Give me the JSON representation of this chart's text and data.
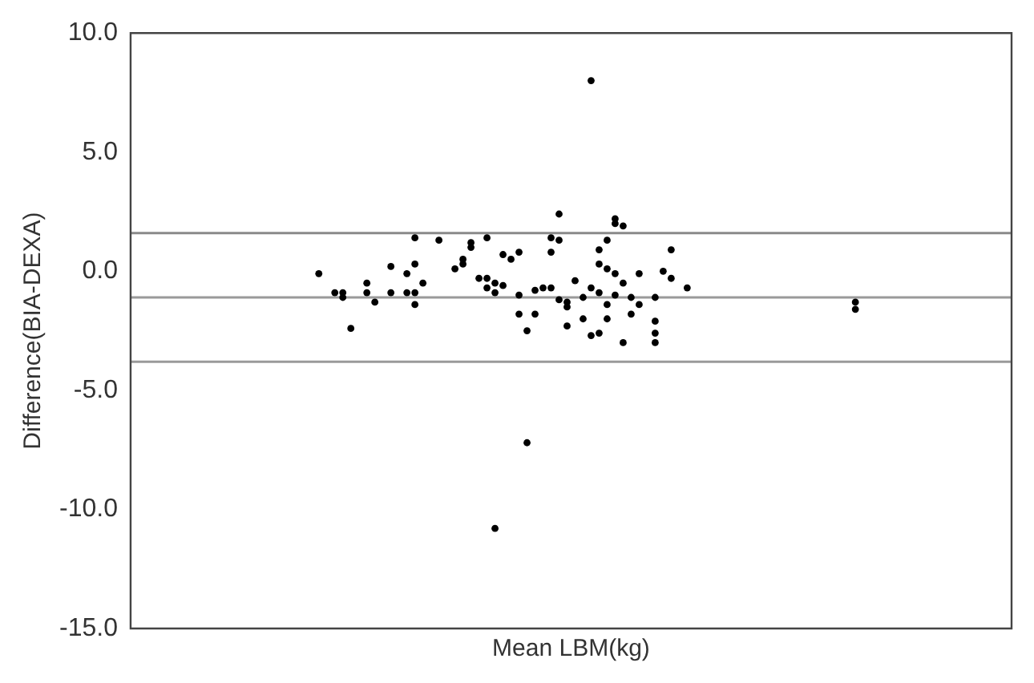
{
  "chart_data": {
    "type": "scatter",
    "xlabel": "Mean LBM(kg)",
    "ylabel": "Difference(BIA-DEXA)",
    "categories": [
      null,
      null,
      null,
      null,
      null,
      null,
      null,
      null,
      null,
      null,
      null,
      null,
      null,
      null,
      null,
      null,
      null,
      null,
      null,
      null,
      null,
      null,
      null,
      null,
      null,
      null,
      null,
      null,
      null,
      null,
      null,
      null,
      null,
      null,
      null,
      null,
      null,
      null,
      null,
      null,
      null,
      null,
      null,
      null,
      null,
      null,
      null,
      null,
      null,
      null,
      null,
      null,
      null,
      null,
      null,
      null,
      null,
      null,
      null,
      null,
      null,
      null,
      null,
      null,
      null,
      null,
      null,
      null,
      null,
      null,
      null,
      null,
      null,
      null,
      null,
      null,
      null,
      null,
      null,
      null,
      null,
      null,
      null,
      null,
      null,
      null,
      null,
      null,
      null,
      null,
      null,
      null,
      null,
      null,
      null,
      null,
      null,
      null,
      null,
      null,
      null,
      null,
      null,
      null,
      null,
      null,
      null,
      null,
      null,
      null
    ],
    "series": [
      {
        "color": "#000000",
        "values": [
          null,
          null,
          null,
          null,
          null,
          null,
          null,
          null,
          null,
          null,
          null,
          null,
          null,
          null,
          null,
          null,
          null,
          null,
          null,
          null,
          null,
          null,
          null,
          -0.1,
          null,
          -0.9,
          -0.9,
          -2.4,
          null,
          -0.5,
          -1.3,
          null,
          -0.9,
          null,
          -0.9,
          -0.9,
          -0.5,
          null,
          1.3,
          null,
          0.1,
          0.3,
          1.0,
          -0.3,
          -0.7,
          -0.5,
          -0.6,
          0.5,
          -1.8,
          -2.5,
          -1.8,
          -0.7,
          -0.7,
          1.3,
          -1.5,
          -0.4,
          -1.1,
          -0.7,
          0.9,
          0.1,
          -1.0,
          1.9,
          -1.1,
          -0.1,
          null,
          -2.1,
          0.0,
          0.9,
          null,
          -0.7,
          null,
          null,
          null,
          null,
          null,
          null,
          null,
          null,
          null,
          null,
          null,
          null,
          null,
          null,
          null,
          null,
          null,
          null,
          null,
          null,
          -1.3,
          null,
          null,
          null,
          null,
          null,
          null,
          null,
          null,
          null,
          null,
          null,
          null,
          null,
          null,
          null,
          null,
          null,
          null,
          null
        ]
      },
      {
        "color": "#000000",
        "values": [
          null,
          null,
          null,
          null,
          null,
          null,
          null,
          null,
          null,
          null,
          null,
          null,
          null,
          null,
          null,
          null,
          null,
          null,
          null,
          null,
          null,
          null,
          null,
          null,
          null,
          null,
          -1.1,
          null,
          null,
          -0.9,
          null,
          null,
          0.2,
          null,
          -0.1,
          1.4,
          null,
          null,
          null,
          null,
          null,
          0.5,
          1.2,
          null,
          1.4,
          -0.9,
          0.7,
          null,
          0.8,
          -7.2,
          -0.8,
          null,
          1.4,
          -1.2,
          -1.3,
          null,
          -2.0,
          -2.7,
          0.3,
          -1.4,
          -0.1,
          -3.0,
          -1.8,
          -1.4,
          null,
          -3.0,
          null,
          -0.3,
          null,
          null,
          null,
          null,
          null,
          null,
          null,
          null,
          null,
          null,
          null,
          null,
          null,
          null,
          null,
          null,
          null,
          null,
          null,
          null,
          null,
          null,
          -1.6,
          null,
          null,
          null,
          null,
          null,
          null,
          null,
          null,
          null,
          null,
          null,
          null,
          null,
          null,
          null,
          null,
          null,
          null,
          null
        ]
      },
      {
        "color": "#000000",
        "values": [
          null,
          null,
          null,
          null,
          null,
          null,
          null,
          null,
          null,
          null,
          null,
          null,
          null,
          null,
          null,
          null,
          null,
          null,
          null,
          null,
          null,
          null,
          null,
          null,
          null,
          null,
          null,
          null,
          null,
          null,
          null,
          null,
          null,
          null,
          null,
          0.3,
          null,
          null,
          null,
          null,
          null,
          null,
          null,
          null,
          -0.3,
          -10.8,
          null,
          null,
          -1.0,
          null,
          null,
          null,
          0.8,
          2.4,
          -2.3,
          null,
          null,
          8.0,
          -0.9,
          -2.0,
          2.0,
          -0.5,
          null,
          null,
          null,
          -2.6,
          null,
          null,
          null,
          null,
          null,
          null,
          null,
          null,
          null,
          null,
          null,
          null,
          null,
          null,
          null,
          null,
          null,
          null,
          null,
          null,
          null,
          null,
          null,
          null,
          null,
          null,
          null,
          null,
          null,
          null,
          null,
          null,
          null,
          null,
          null,
          null,
          null,
          null,
          null,
          null,
          null,
          null,
          null,
          null
        ]
      },
      {
        "color": "#000000",
        "values": [
          null,
          null,
          null,
          null,
          null,
          null,
          null,
          null,
          null,
          null,
          null,
          null,
          null,
          null,
          null,
          null,
          null,
          null,
          null,
          null,
          null,
          null,
          null,
          null,
          null,
          null,
          null,
          null,
          null,
          null,
          null,
          null,
          null,
          null,
          null,
          -1.4,
          null,
          null,
          null,
          null,
          null,
          null,
          null,
          null,
          null,
          null,
          null,
          null,
          null,
          null,
          null,
          null,
          null,
          null,
          null,
          null,
          null,
          null,
          -2.6,
          1.3,
          2.2,
          null,
          null,
          null,
          null,
          -1.1,
          null,
          null,
          null,
          null,
          null,
          null,
          null,
          null,
          null,
          null,
          null,
          null,
          null,
          null,
          null,
          null,
          null,
          null,
          null,
          null,
          null,
          null,
          null,
          null,
          null,
          null,
          null,
          null,
          null,
          null,
          null,
          null,
          null,
          null,
          null,
          null,
          null,
          null,
          null,
          null,
          null,
          null,
          null,
          null
        ]
      }
    ],
    "ylim": [
      -15,
      10
    ],
    "yticks": [
      {
        "value": -15,
        "label": "-15.0"
      },
      {
        "value": -10,
        "label": "-10.0"
      },
      {
        "value": -5,
        "label": "-5.0"
      },
      {
        "value": 0,
        "label": "0.0"
      },
      {
        "value": 5,
        "label": "5.0"
      },
      {
        "value": 10,
        "label": "10.0"
      }
    ],
    "ref_lines": [
      {
        "axis": "y",
        "value": 1.6,
        "color": "#8a8a8a"
      },
      {
        "axis": "y",
        "value": -1.1,
        "color": "#9a9a9a"
      },
      {
        "axis": "y",
        "value": -3.8,
        "color": "#9a9a9a"
      }
    ],
    "tick_labels": "y",
    "grid": false,
    "legend": false,
    "marker": "circle"
  }
}
